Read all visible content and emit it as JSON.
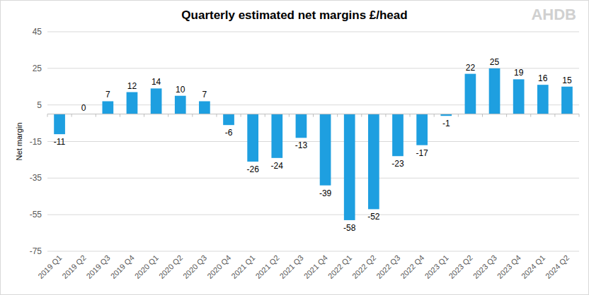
{
  "chart_data": {
    "type": "bar",
    "title": "Quarterly estimated net margins £/head",
    "y_label": "Net margin",
    "annotations": [
      "AHDB"
    ],
    "categories": [
      "2019 Q1",
      "2019 Q2",
      "2019 Q3",
      "2019 Q4",
      "2020 Q1",
      "2020 Q2",
      "2020 Q3",
      "2020 Q4",
      "2021 Q1",
      "2021 Q2",
      "2021 Q3",
      "2021 Q4",
      "2022 Q1",
      "2022 Q2",
      "2022 Q3",
      "2022 Q4",
      "2023 Q1",
      "2023 Q2",
      "2023 Q3",
      "2023 Q4",
      "2024 Q1",
      "2024 Q2"
    ],
    "values": [
      -11,
      0,
      7,
      12,
      14,
      10,
      7,
      -6,
      -26,
      -24,
      -13,
      -39,
      -58,
      -52,
      -23,
      -17,
      -1,
      22,
      25,
      19,
      16,
      15
    ],
    "color": "#1e9fe0",
    "ylim": [
      -75,
      45
    ],
    "yticks": [
      -75,
      -55,
      -35,
      -15,
      5,
      25,
      45
    ],
    "grid": true,
    "data_labels": true
  }
}
